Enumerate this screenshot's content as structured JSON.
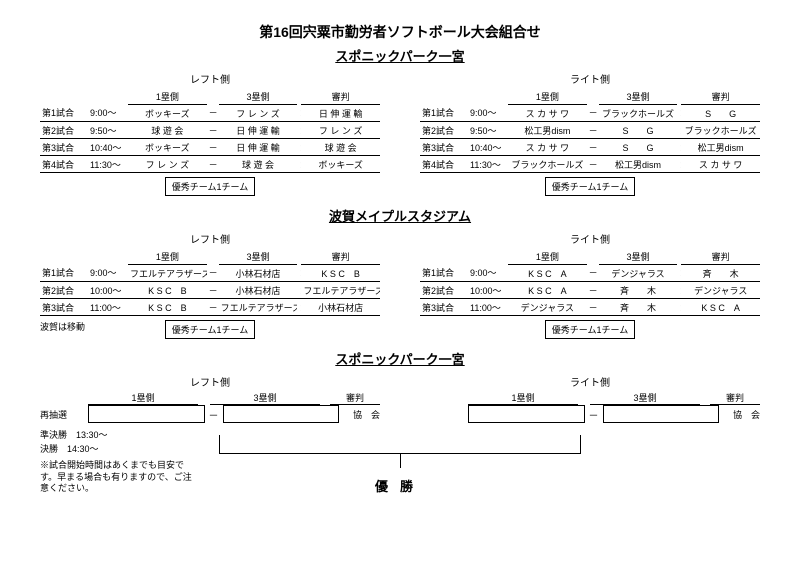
{
  "title_main": "第16回宍粟市勤労者ソフトボール大会組合せ",
  "title_sub": "スポニックパーク一宮",
  "venue1": {
    "left_label": "レフト側",
    "right_label": "ライト側",
    "hdr": {
      "b1": "1塁側",
      "b3": "3塁側",
      "ref": "審判"
    },
    "left_rows": [
      {
        "g": "第1試合",
        "t": "9:00～",
        "a": "ボッキーズ",
        "b": "フ レ ン ズ",
        "r": "日 伸 運 輸"
      },
      {
        "g": "第2試合",
        "t": "9:50～",
        "a": "球 遊 会",
        "b": "日 伸 運 輸",
        "r": "フ レ ン ズ"
      },
      {
        "g": "第3試合",
        "t": "10:40～",
        "a": "ボッキーズ",
        "b": "日 伸 運 輸",
        "r": "球 遊 会"
      },
      {
        "g": "第4試合",
        "t": "11:30～",
        "a": "フ レ ン ズ",
        "b": "球 遊 会",
        "r": "ボッキーズ"
      }
    ],
    "right_rows": [
      {
        "g": "第1試合",
        "t": "9:00～",
        "a": "ス カ サ ワ",
        "b": "ブラックホールズ",
        "r": "S　　G"
      },
      {
        "g": "第2試合",
        "t": "9:50～",
        "a": "松工男dism",
        "b": "S　　G",
        "r": "ブラックホールズ"
      },
      {
        "g": "第3試合",
        "t": "10:40～",
        "a": "ス カ サ ワ",
        "b": "S　　G",
        "r": "松工男dism"
      },
      {
        "g": "第4試合",
        "t": "11:30～",
        "a": "ブラックホールズ",
        "b": "松工男dism",
        "r": "ス カ サ ワ"
      }
    ],
    "excellent": "優秀チーム1チーム"
  },
  "venue2_title": "波賀メイプルスタジアム",
  "venue2": {
    "left_label": "レフト側",
    "right_label": "ライト側",
    "hdr": {
      "b1": "1塁側",
      "b3": "3塁側",
      "ref": "審判"
    },
    "left_rows": [
      {
        "g": "第1試合",
        "t": "9:00～",
        "a": "フエルテアラザーズ",
        "b": "小林石材店",
        "r": "K S C　B"
      },
      {
        "g": "第2試合",
        "t": "10:00～",
        "a": "K S C　B",
        "b": "小林石材店",
        "r": "フエルテアラザーズ"
      },
      {
        "g": "第3試合",
        "t": "11:00～",
        "a": "K S C　B",
        "b": "フエルテアラザーズ",
        "r": "小林石材店"
      }
    ],
    "right_rows": [
      {
        "g": "第1試合",
        "t": "9:00～",
        "a": "K S C　A",
        "b": "デンジャラス",
        "r": "斉　　木"
      },
      {
        "g": "第2試合",
        "t": "10:00～",
        "a": "K S C　A",
        "b": "斉　　木",
        "r": "デンジャラス"
      },
      {
        "g": "第3試合",
        "t": "11:00～",
        "a": "デンジャラス",
        "b": "斉　　木",
        "r": "K S C　A"
      }
    ],
    "excellent": "優秀チーム1チーム",
    "move": "波賀は移動"
  },
  "venue3_title": "スポニックパーク一宮",
  "bracket": {
    "left_label": "レフト側",
    "right_label": "ライト側",
    "hdr": {
      "b1": "1塁側",
      "b3": "3塁側",
      "ref": "審判"
    },
    "redraw": "再抽選",
    "ref_val": "協　会",
    "semi": "準決勝　13:30～",
    "final": "決勝　14:30～",
    "note": "※試合開始時間はあくまでも目安です。早まる場合も有りますので、ご注意ください。",
    "champ": "優勝"
  }
}
